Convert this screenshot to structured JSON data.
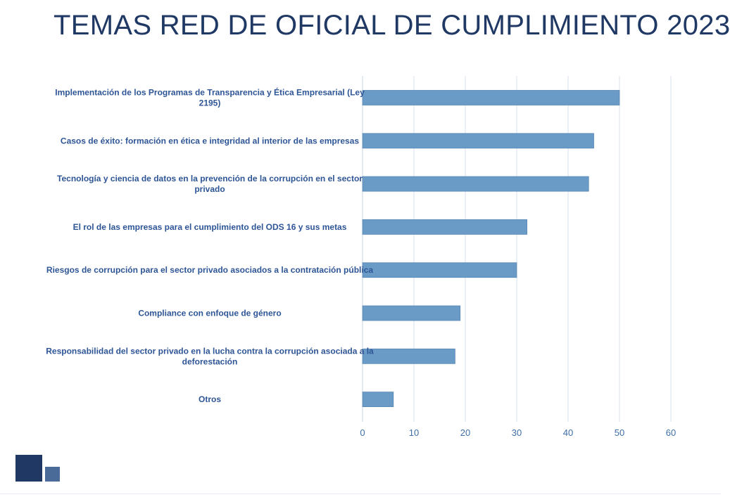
{
  "slide": {
    "title": "TEMAS RED DE OFICIAL DE CUMPLIMIENTO 2023"
  },
  "chart_data": {
    "type": "bar",
    "orientation": "horizontal",
    "title": "",
    "xlabel": "",
    "ylabel": "",
    "xlim": [
      0,
      60
    ],
    "ticks": [
      0,
      10,
      20,
      30,
      40,
      50,
      60
    ],
    "grid": true,
    "bar_color": "#6a9bc7",
    "categories": [
      [
        "Implementación de los Programas de Transparencia y Ética Empresarial (Ley",
        "2195)"
      ],
      [
        "Casos de éxito: formación en ética e integridad al interior de las empresas"
      ],
      [
        "Tecnología y ciencia de datos en la prevención de la corrupción en el sector",
        "privado"
      ],
      [
        "El rol de las empresas para el cumplimiento del ODS 16 y sus metas"
      ],
      [
        "Riesgos de corrupción para el sector privado asociados a la contratación pública"
      ],
      [
        "Compliance con enfoque de género"
      ],
      [
        "Responsabilidad del sector privado en la lucha contra la corrupción asociada a la",
        "deforestación"
      ],
      [
        "Otros"
      ]
    ],
    "values": [
      50,
      45,
      44,
      32,
      30,
      19,
      18,
      6
    ]
  }
}
